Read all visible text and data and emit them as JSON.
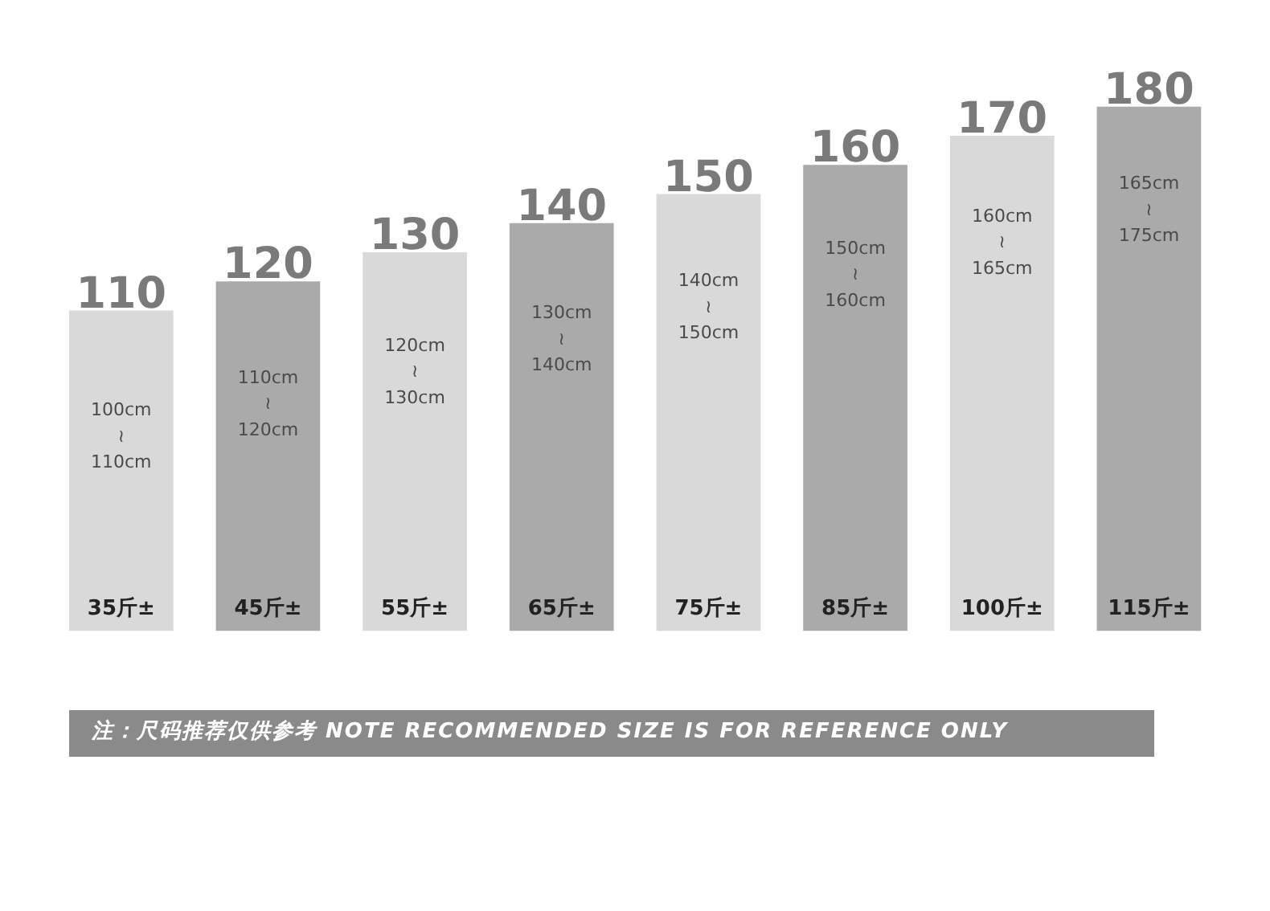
{
  "chart_data": {
    "type": "bar",
    "categories": [
      "35斤±",
      "45斤±",
      "55斤±",
      "65斤±",
      "75斤±",
      "85斤±",
      "100斤±",
      "115斤±"
    ],
    "values": [
      110,
      120,
      130,
      140,
      150,
      160,
      170,
      180
    ],
    "colors": [
      "#d9d9d9",
      "#aaaaaa",
      "#d9d9d9",
      "#aaaaaa",
      "#d9d9d9",
      "#aaaaaa",
      "#d9d9d9",
      "#aaaaaa"
    ],
    "data_labels": true,
    "grid": false,
    "tick_labels": "x",
    "annotations": [
      "100cm\n≀\n110cm",
      "110cm\n≀\n120cm",
      "120cm\n≀\n130cm",
      "130cm\n≀\n140cm",
      "140cm\n≀\n150cm",
      "150cm\n≀\n160cm",
      "160cm\n≀\n165cm",
      "165cm\n≀\n175cm",
      "注：尺码推荐仅供参考 NOTE RECOMMENDED SIZE IS FOR REFERENCE ONLY"
    ]
  }
}
